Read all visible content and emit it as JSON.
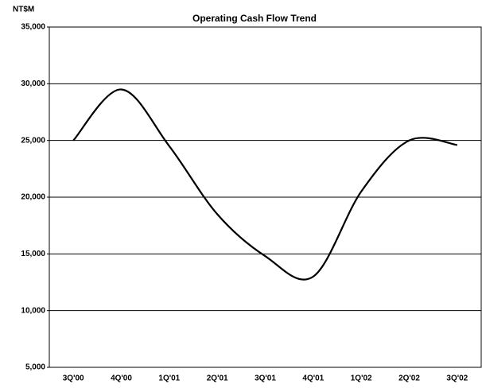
{
  "chart_data": {
    "type": "line",
    "title": "Operating Cash Flow Trend",
    "y_label": "NT$M",
    "categories": [
      "3Q'00",
      "4Q'00",
      "1Q'01",
      "2Q'01",
      "3Q'01",
      "4Q'01",
      "1Q'02",
      "2Q'02",
      "3Q'02"
    ],
    "series": [
      {
        "name": "Operating Cash Flow",
        "color": "#000000",
        "values": [
          25000,
          29500,
          24500,
          18500,
          14800,
          13000,
          20500,
          25000,
          24600
        ]
      }
    ],
    "ylim": [
      5000,
      35000
    ],
    "yticks": [
      {
        "value": 5000,
        "label": "5,000"
      },
      {
        "value": 10000,
        "label": "10,000"
      },
      {
        "value": 15000,
        "label": "15,000"
      },
      {
        "value": 20000,
        "label": "20,000"
      },
      {
        "value": 25000,
        "label": "25,000"
      },
      {
        "value": 30000,
        "label": "30,000"
      },
      {
        "value": 35000,
        "label": "35,000"
      }
    ],
    "grid": true
  }
}
